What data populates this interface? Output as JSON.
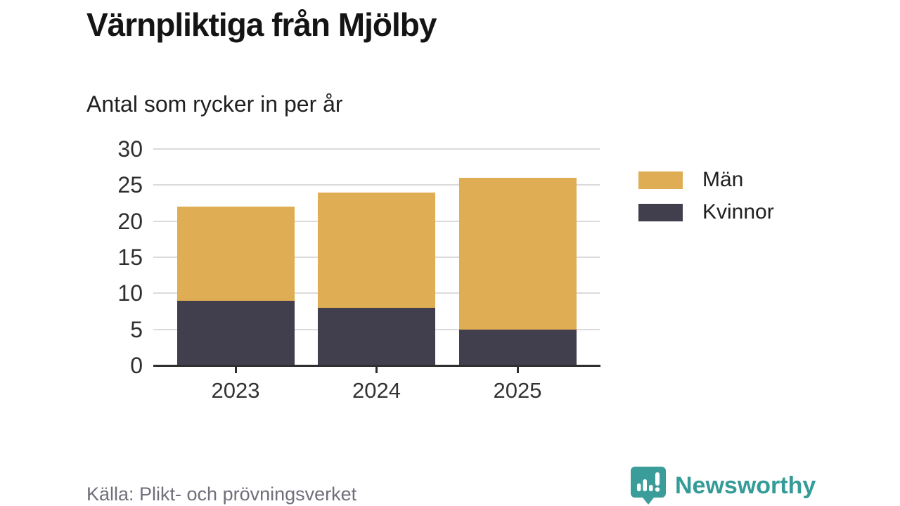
{
  "page": {
    "title": "Värnpliktiga från Mjölby",
    "subtitle": "Antal som rycker in per år",
    "source": "Källa: Plikt- och prövningsverket",
    "brand": "Newsworthy"
  },
  "colors": {
    "men": "#dfad54",
    "women": "#413f4d",
    "grid": "#dbdbdb",
    "axis": "#2f2f2f",
    "brand_teal": "#349b97"
  },
  "chart_data": {
    "type": "bar",
    "stacked": true,
    "title": "Värnpliktiga från Mjölby",
    "subtitle": "Antal som rycker in per år",
    "categories": [
      "2023",
      "2024",
      "2025"
    ],
    "series": [
      {
        "name": "Kvinnor",
        "color": "#413f4d",
        "values": [
          9,
          8,
          5
        ]
      },
      {
        "name": "Män",
        "color": "#dfad54",
        "values": [
          13,
          16,
          21
        ]
      }
    ],
    "totals": [
      22,
      24,
      26
    ],
    "xlabel": "",
    "ylabel": "",
    "ylim": [
      0,
      30
    ],
    "yticks": [
      0,
      5,
      10,
      15,
      20,
      25,
      30
    ],
    "grid": true,
    "legend_position": "right",
    "legend": [
      {
        "label": "Män",
        "color": "#dfad54"
      },
      {
        "label": "Kvinnor",
        "color": "#413f4d"
      }
    ]
  }
}
